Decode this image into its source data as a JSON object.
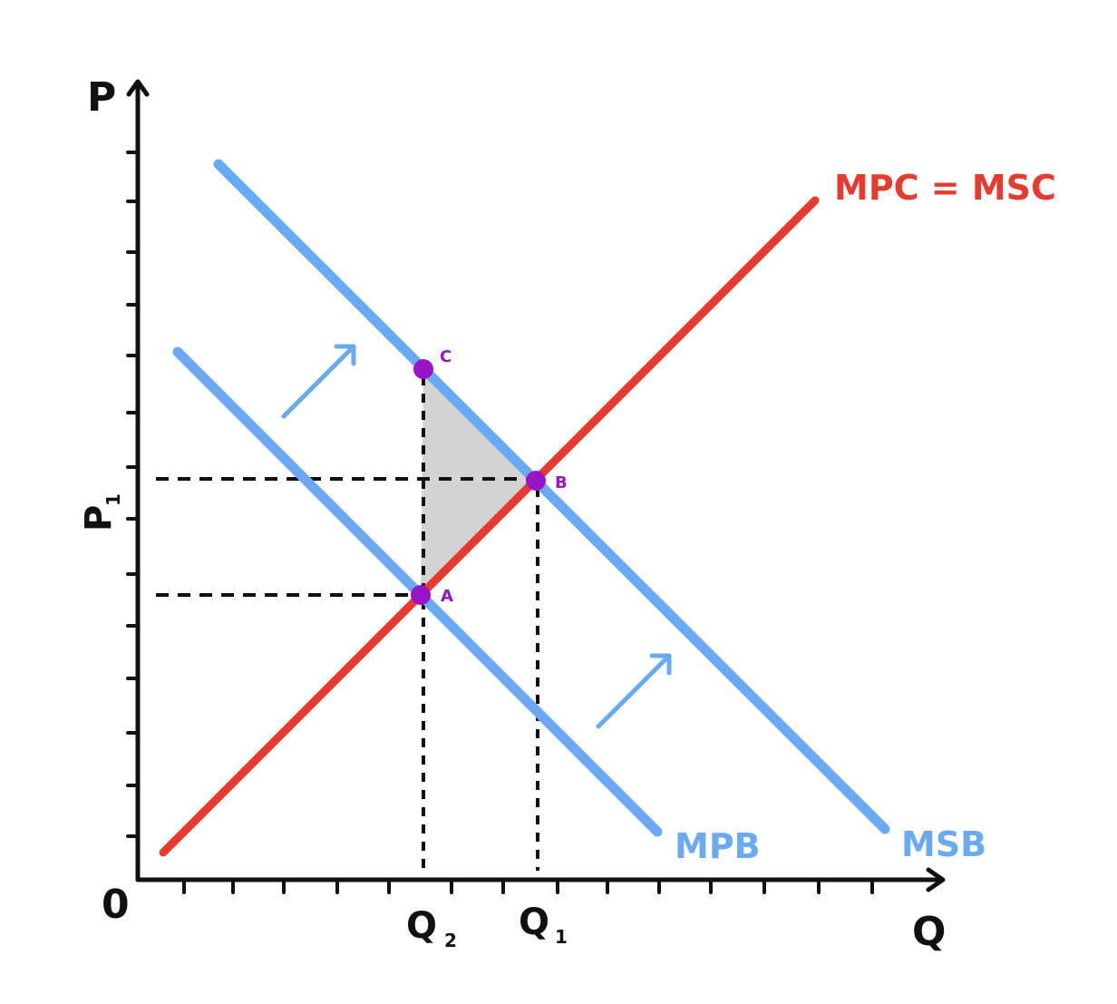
{
  "colors": {
    "axis": "#111111",
    "supply": "#e63b2e",
    "benefit": "#6aaaf2",
    "point": "#9a13c8",
    "welfare_gain": "#d3d3d3"
  },
  "axes": {
    "y_label": "P",
    "x_label": "Q",
    "origin_label": "0"
  },
  "curves": {
    "supply_label": "MPC = MSC",
    "mpb_label": "MPB",
    "msb_label": "MSB"
  },
  "points": {
    "a": "A",
    "b": "B",
    "c": "C"
  },
  "ticks": {
    "p1_main": "P",
    "p1_sub": "1",
    "q2_main": "Q",
    "q2_sub": "2",
    "q1_main": "Q",
    "q1_sub": "1"
  },
  "shift_arrows": [
    "arrow-right-up-icon",
    "arrow-right-up-icon"
  ],
  "shaded_area": "welfare-gain-triangle"
}
